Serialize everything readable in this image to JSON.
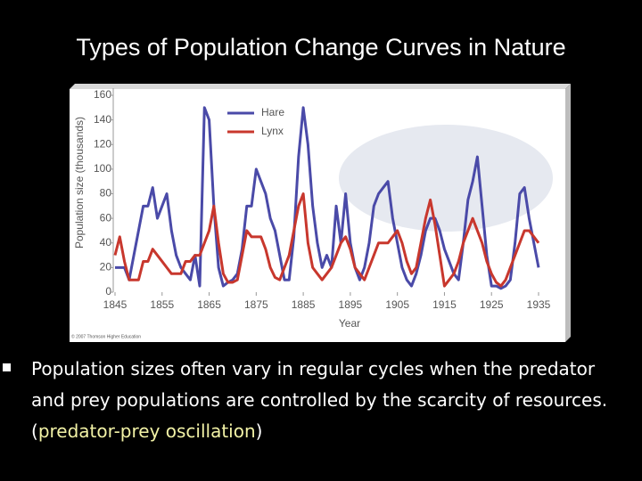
{
  "slide": {
    "title": "Types of Population Change Curves in Nature",
    "bullet": [
      "Population sizes often vary in regular cycles when the predator and prey populations are controlled by the scarcity of resources. (",
      "predator-prey oscillation",
      ")"
    ]
  },
  "chart_data": {
    "type": "line",
    "x_label": "Year",
    "y_label": "Population size (thousands)",
    "credit": "© 2007 Thomson Higher Education",
    "x": [
      1845,
      1846,
      1847,
      1848,
      1849,
      1850,
      1851,
      1852,
      1853,
      1854,
      1855,
      1856,
      1857,
      1858,
      1859,
      1860,
      1861,
      1862,
      1863,
      1864,
      1865,
      1866,
      1867,
      1868,
      1869,
      1870,
      1871,
      1872,
      1873,
      1874,
      1875,
      1876,
      1877,
      1878,
      1879,
      1880,
      1881,
      1882,
      1883,
      1884,
      1885,
      1886,
      1887,
      1888,
      1889,
      1890,
      1891,
      1892,
      1893,
      1894,
      1895,
      1896,
      1897,
      1898,
      1899,
      1900,
      1901,
      1902,
      1903,
      1904,
      1905,
      1906,
      1907,
      1908,
      1909,
      1910,
      1911,
      1912,
      1913,
      1914,
      1915,
      1916,
      1917,
      1918,
      1919,
      1920,
      1921,
      1922,
      1923,
      1924,
      1925,
      1926,
      1927,
      1928,
      1929,
      1930,
      1931,
      1932,
      1933,
      1934,
      1935
    ],
    "series": [
      {
        "name": "Hare",
        "color": "#4a4aa8",
        "values": [
          20,
          20,
          20,
          10,
          30,
          50,
          70,
          70,
          85,
          60,
          70,
          80,
          50,
          30,
          20,
          15,
          10,
          30,
          5,
          150,
          140,
          70,
          20,
          5,
          8,
          10,
          15,
          35,
          70,
          70,
          100,
          90,
          80,
          60,
          50,
          30,
          10,
          10,
          45,
          110,
          150,
          120,
          70,
          40,
          20,
          30,
          20,
          70,
          40,
          80,
          40,
          20,
          10,
          20,
          40,
          70,
          80,
          85,
          90,
          60,
          40,
          20,
          10,
          5,
          15,
          30,
          50,
          60,
          60,
          50,
          35,
          25,
          15,
          10,
          40,
          75,
          90,
          110,
          70,
          30,
          5,
          5,
          3,
          5,
          10,
          40,
          80,
          85,
          60,
          40,
          20
        ]
      },
      {
        "name": "Lynx",
        "color": "#c8372d",
        "values": [
          30,
          45,
          25,
          10,
          10,
          10,
          25,
          25,
          35,
          30,
          25,
          20,
          15,
          15,
          15,
          25,
          25,
          30,
          30,
          40,
          50,
          70,
          40,
          15,
          8,
          8,
          10,
          30,
          50,
          45,
          45,
          45,
          35,
          20,
          12,
          10,
          20,
          30,
          50,
          70,
          80,
          40,
          20,
          15,
          10,
          15,
          20,
          30,
          40,
          45,
          35,
          20,
          15,
          10,
          20,
          30,
          40,
          40,
          40,
          45,
          50,
          40,
          25,
          15,
          20,
          40,
          60,
          75,
          55,
          30,
          5,
          10,
          15,
          25,
          40,
          50,
          60,
          50,
          40,
          25,
          15,
          8,
          5,
          10,
          20,
          30,
          40,
          50,
          50,
          45,
          40
        ]
      }
    ],
    "xlim": [
      1845,
      1935
    ],
    "xticks": [
      1845,
      1855,
      1865,
      1875,
      1885,
      1895,
      1905,
      1915,
      1925,
      1935
    ],
    "ylim": [
      0,
      160
    ],
    "yticks": [
      0,
      20,
      40,
      60,
      80,
      100,
      120,
      140,
      160
    ],
    "legend": "upper-left"
  }
}
